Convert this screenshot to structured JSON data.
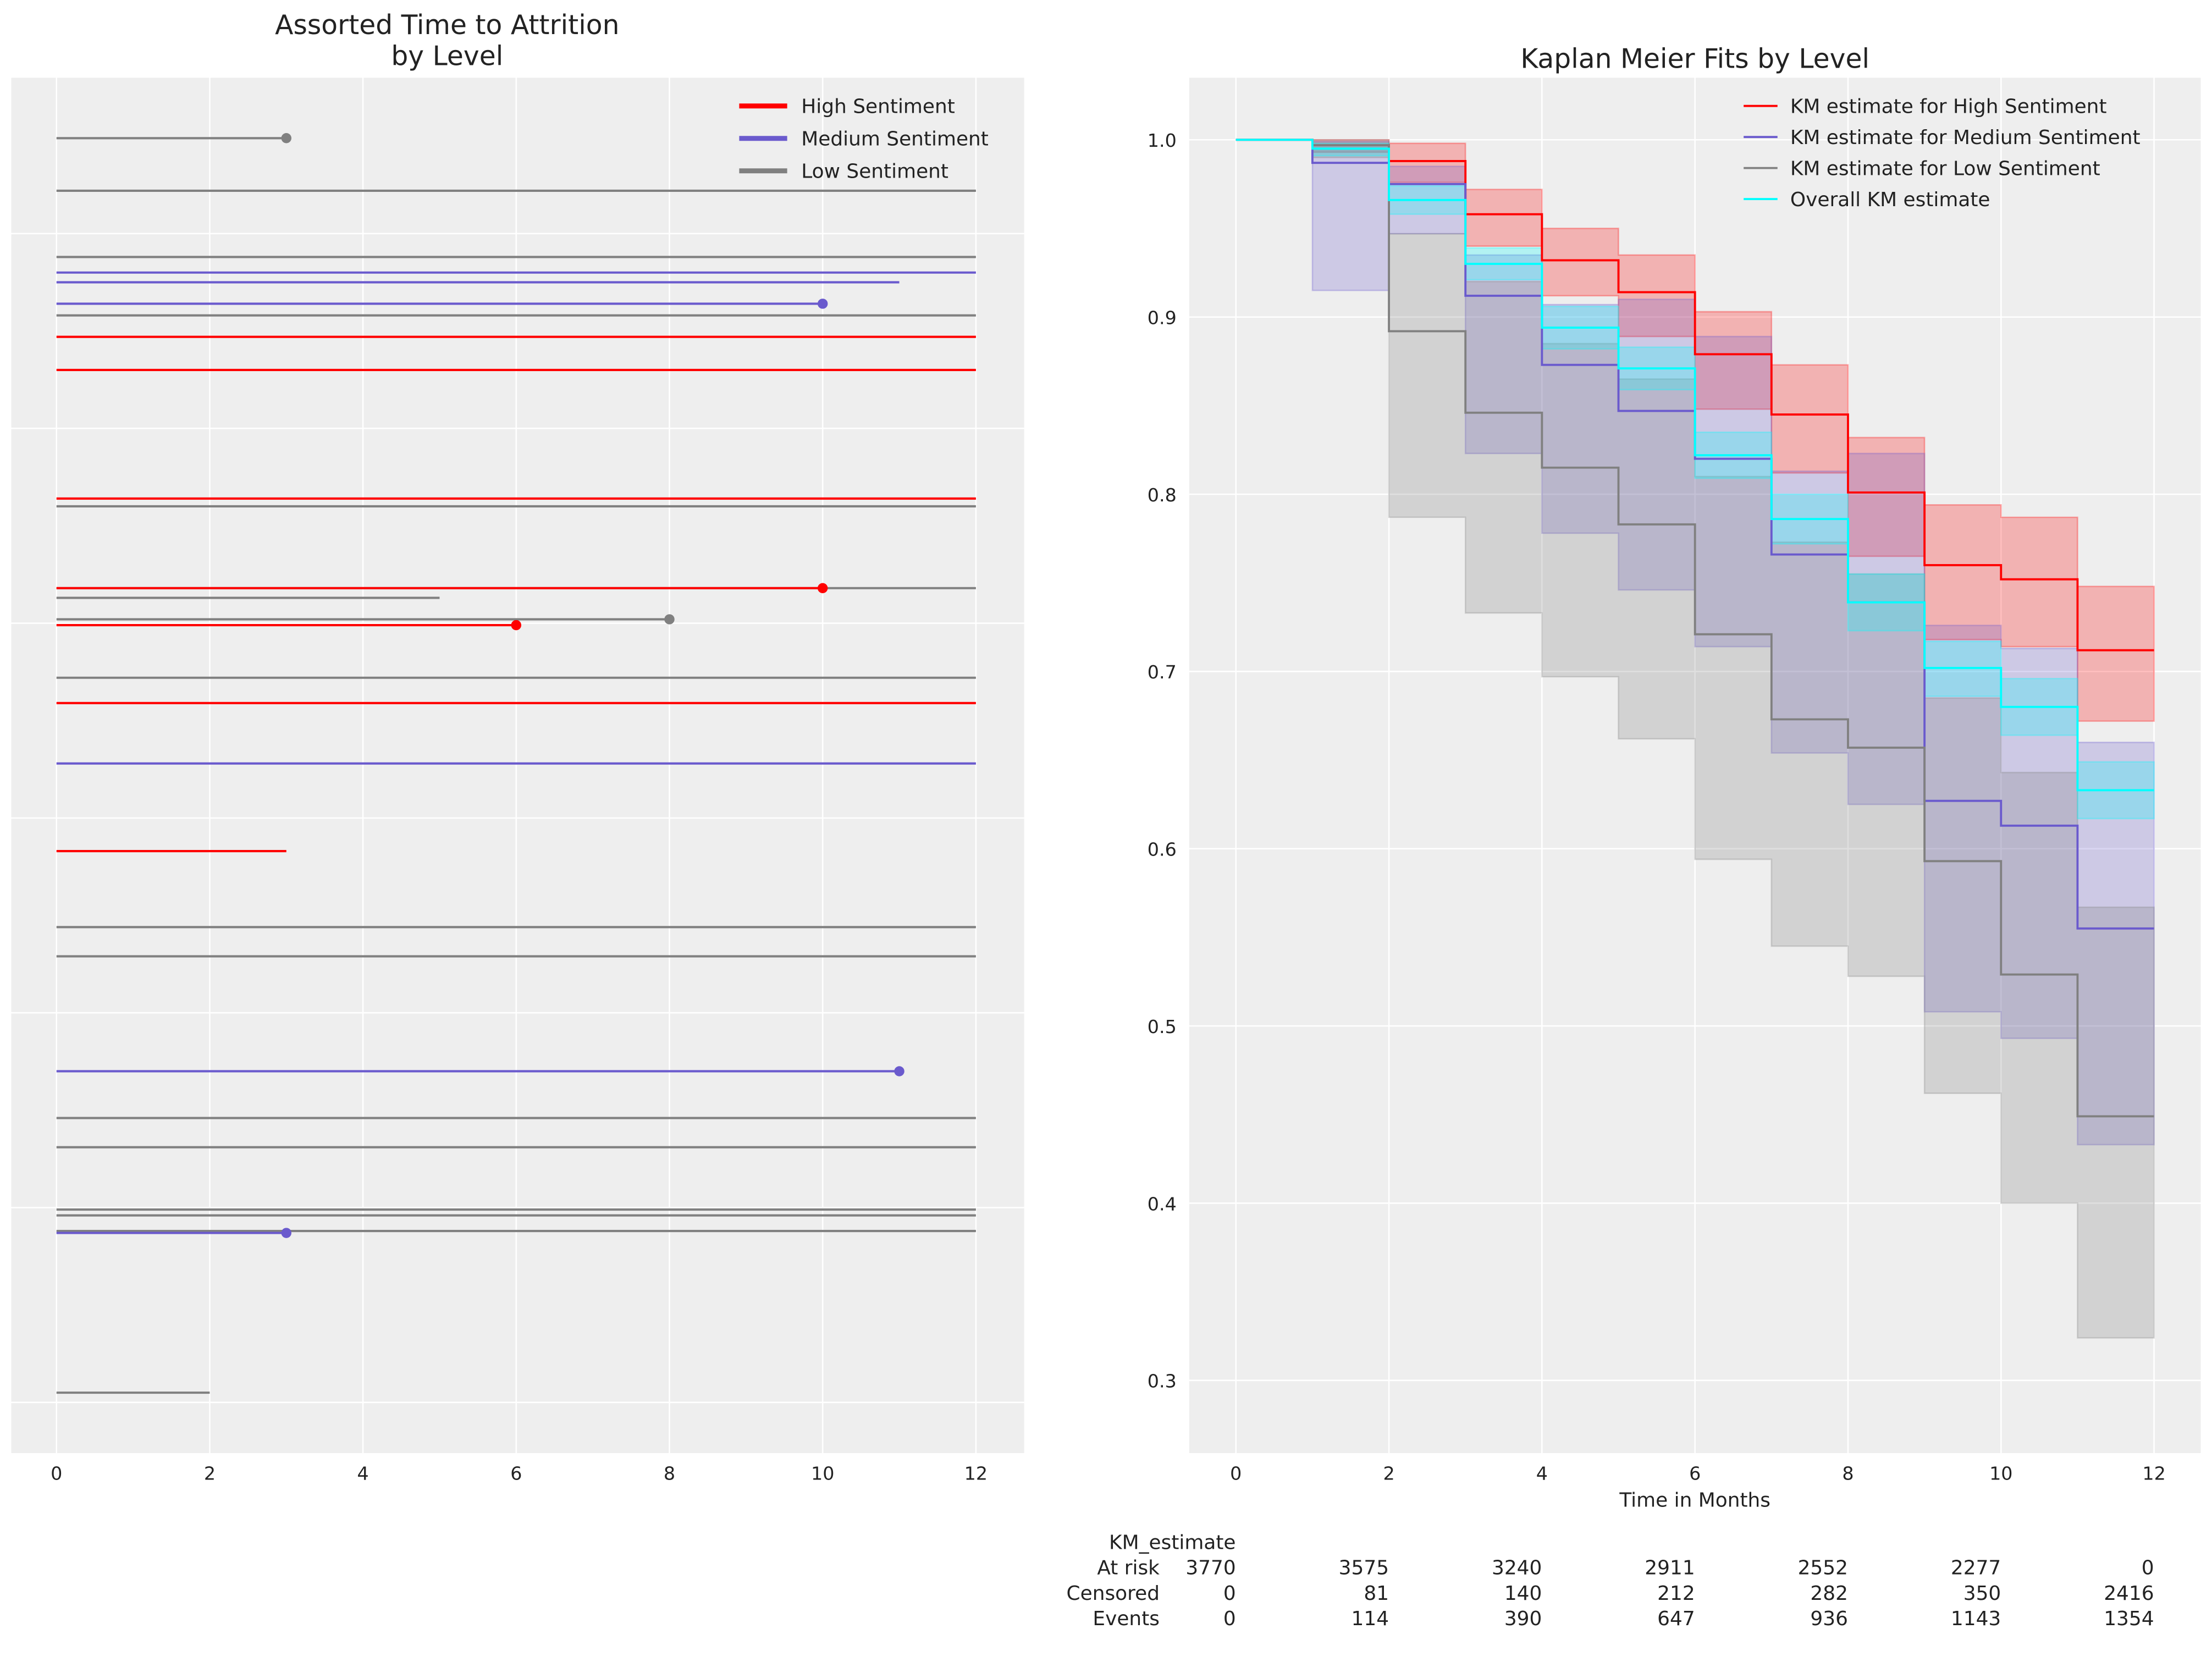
{
  "chart_data": [
    {
      "type": "line",
      "title": "Assorted Time to Attrition\nby Level",
      "title_lines": [
        "Assorted Time to Attrition",
        "by Level"
      ],
      "xlabel": "",
      "ylabel": "",
      "xlim": [
        -0.59,
        12.63
      ],
      "ylim": [
        -0.26,
        6.8
      ],
      "xticks": [
        0,
        2,
        4,
        6,
        8,
        10,
        12
      ],
      "yticks_grid": [
        0,
        1,
        2,
        3,
        4,
        5,
        6
      ],
      "legend": {
        "placement": "top-right",
        "entries": [
          {
            "label": "High Sentiment",
            "color": "#ff0000"
          },
          {
            "label": "Medium Sentiment",
            "color": "#6a5acd"
          },
          {
            "label": "Low Sentiment",
            "color": "#808080"
          }
        ]
      },
      "colors": {
        "High": "#ff0000",
        "Medium": "#6a5acd",
        "Low": "#808080"
      },
      "subjects": [
        {
          "y": 6.49,
          "level": "Low",
          "end": 3,
          "event": true
        },
        {
          "y": 6.22,
          "level": "Low",
          "end": 12,
          "event": false
        },
        {
          "y": 5.88,
          "level": "Low",
          "end": 12,
          "event": false
        },
        {
          "y": 5.8,
          "level": "Medium",
          "end": 12,
          "event": false
        },
        {
          "y": 5.75,
          "level": "Medium",
          "end": 11,
          "event": false
        },
        {
          "y": 5.64,
          "level": "Medium",
          "end": 10,
          "event": true
        },
        {
          "y": 5.58,
          "level": "Low",
          "end": 12,
          "event": false
        },
        {
          "y": 5.47,
          "level": "High",
          "end": 12,
          "event": false
        },
        {
          "y": 5.3,
          "level": "High",
          "end": 12,
          "event": false
        },
        {
          "y": 4.64,
          "level": "High",
          "end": 12,
          "event": false
        },
        {
          "y": 4.6,
          "level": "Low",
          "end": 12,
          "event": false
        },
        {
          "y": 4.18,
          "level": "Low",
          "end": 12,
          "event": false
        },
        {
          "y": 4.18,
          "level": "High",
          "end": 10,
          "event": true
        },
        {
          "y": 4.13,
          "level": "Low",
          "end": 5,
          "event": false
        },
        {
          "y": 4.02,
          "level": "Low",
          "end": 8,
          "event": true
        },
        {
          "y": 3.99,
          "level": "High",
          "end": 6,
          "event": true
        },
        {
          "y": 3.72,
          "level": "Low",
          "end": 12,
          "event": false
        },
        {
          "y": 3.59,
          "level": "High",
          "end": 12,
          "event": false
        },
        {
          "y": 3.28,
          "level": "Medium",
          "end": 12,
          "event": false
        },
        {
          "y": 2.83,
          "level": "High",
          "end": 3,
          "event": false
        },
        {
          "y": 2.44,
          "level": "Low",
          "end": 12,
          "event": false
        },
        {
          "y": 2.29,
          "level": "Low",
          "end": 12,
          "event": false
        },
        {
          "y": 1.7,
          "level": "Medium",
          "end": 11,
          "event": true
        },
        {
          "y": 1.46,
          "level": "Low",
          "end": 12,
          "event": false
        },
        {
          "y": 1.31,
          "level": "Low",
          "end": 12,
          "event": false
        },
        {
          "y": 0.99,
          "level": "Low",
          "end": 12,
          "event": false
        },
        {
          "y": 0.96,
          "level": "Low",
          "end": 12,
          "event": false
        },
        {
          "y": 0.88,
          "level": "Low",
          "end": 12,
          "event": false
        },
        {
          "y": 0.87,
          "level": "Medium",
          "end": 3,
          "event": true
        },
        {
          "y": 0.05,
          "level": "Low",
          "end": 2,
          "event": false
        }
      ]
    },
    {
      "type": "line",
      "title": "Kaplan Meier Fits by Level",
      "xlabel": "Time in Months",
      "ylabel": "",
      "xlim": [
        -0.61,
        12.61
      ],
      "ylim": [
        0.259,
        1.035
      ],
      "xticks": [
        0,
        2,
        4,
        6,
        8,
        10,
        12
      ],
      "yticks": [
        0.3,
        0.4,
        0.5,
        0.6,
        0.7,
        0.8,
        0.9,
        1.0
      ],
      "legend_placement": "top-right",
      "series": [
        {
          "name": "KM estimate for High Sentiment",
          "color": "#ff0000",
          "survival": [
            1.0,
            0.997,
            0.988,
            0.958,
            0.932,
            0.914,
            0.879,
            0.845,
            0.801,
            0.76,
            0.752,
            0.712
          ],
          "ci_upper": [
            1.0,
            1.0,
            0.998,
            0.972,
            0.95,
            0.935,
            0.903,
            0.873,
            0.832,
            0.794,
            0.787,
            0.748
          ],
          "ci_lower": [
            1.0,
            0.993,
            0.976,
            0.94,
            0.912,
            0.889,
            0.848,
            0.812,
            0.765,
            0.718,
            0.714,
            0.672
          ]
        },
        {
          "name": "KM estimate for Medium Sentiment",
          "color": "#6a5acd",
          "survival": [
            1.0,
            0.987,
            0.975,
            0.912,
            0.873,
            0.847,
            0.82,
            0.766,
            0.739,
            0.627,
            0.613,
            0.555
          ],
          "ci_upper": [
            1.0,
            0.999,
            0.985,
            0.935,
            0.907,
            0.91,
            0.889,
            0.813,
            0.823,
            0.726,
            0.713,
            0.66
          ],
          "ci_lower": [
            1.0,
            0.915,
            0.947,
            0.823,
            0.778,
            0.746,
            0.714,
            0.654,
            0.625,
            0.508,
            0.493,
            0.433
          ]
        },
        {
          "name": "KM estimate for Low Sentiment",
          "color": "#808080",
          "survival": [
            1.0,
            0.997,
            0.892,
            0.846,
            0.815,
            0.783,
            0.721,
            0.673,
            0.657,
            0.593,
            0.529,
            0.449
          ],
          "ci_upper": [
            1.0,
            1.0,
            0.947,
            0.92,
            0.885,
            0.865,
            0.81,
            0.773,
            0.755,
            0.685,
            0.643,
            0.567
          ],
          "ci_lower": [
            1.0,
            0.99,
            0.787,
            0.733,
            0.697,
            0.662,
            0.594,
            0.545,
            0.528,
            0.462,
            0.4,
            0.324
          ]
        },
        {
          "name": "Overall KM estimate",
          "color": "#00ffff",
          "survival": [
            1.0,
            0.995,
            0.966,
            0.93,
            0.894,
            0.871,
            0.822,
            0.786,
            0.739,
            0.702,
            0.68,
            0.633
          ],
          "ci_upper": [
            1.0,
            0.998,
            0.974,
            0.939,
            0.906,
            0.883,
            0.835,
            0.8,
            0.755,
            0.717,
            0.696,
            0.649
          ],
          "ci_lower": [
            1.0,
            0.991,
            0.958,
            0.921,
            0.882,
            0.859,
            0.809,
            0.772,
            0.723,
            0.686,
            0.664,
            0.617
          ]
        }
      ],
      "at_risk_table": {
        "title": "KM_estimate",
        "times": [
          0,
          2,
          4,
          6,
          8,
          10,
          12
        ],
        "rows": [
          {
            "label": "At risk",
            "values": [
              3770,
              3575,
              3240,
              2911,
              2552,
              2277,
              0
            ]
          },
          {
            "label": "Censored",
            "values": [
              0,
              81,
              140,
              212,
              282,
              350,
              2416
            ]
          },
          {
            "label": "Events",
            "values": [
              0,
              114,
              390,
              647,
              936,
              1143,
              1354
            ]
          }
        ]
      }
    }
  ]
}
